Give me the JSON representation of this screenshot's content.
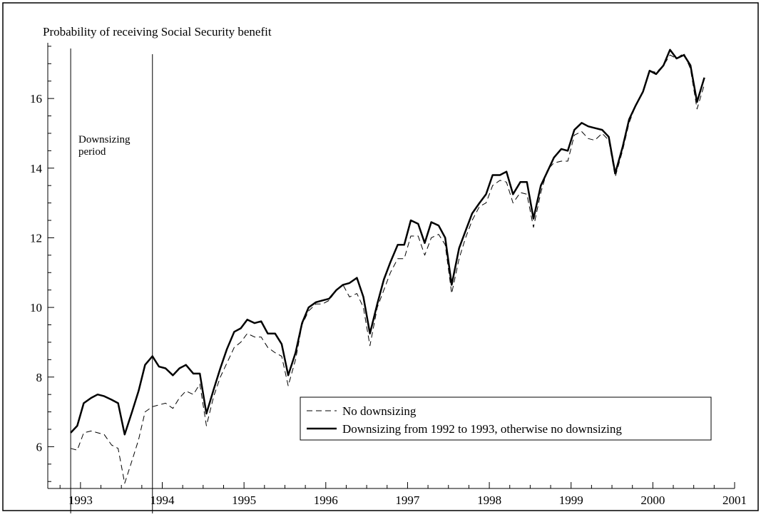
{
  "chart_data": {
    "type": "line",
    "title": "",
    "ylabel": "Probability of receiving Social Security benefit",
    "xlabel": "",
    "xlim": [
      1992.6,
      2001.0
    ],
    "ylim": [
      4.8,
      17.6
    ],
    "xticks": [
      1993,
      1994,
      1995,
      1996,
      1997,
      1998,
      1999,
      2000,
      2001
    ],
    "yticks": [
      6,
      8,
      10,
      12,
      14,
      16
    ],
    "grid": false,
    "legend_position": "bottom-right",
    "annotation": {
      "lines": [
        "Downsizing",
        "period"
      ],
      "x_start": 1992.88,
      "x_end": 1993.88
    },
    "series": [
      {
        "name": "No downsizing",
        "style": "dashed",
        "color": "#000000",
        "x": [
          1992.88,
          1992.96,
          1993.04,
          1993.13,
          1993.21,
          1993.29,
          1993.38,
          1993.46,
          1993.54,
          1993.63,
          1993.71,
          1993.79,
          1993.88,
          1993.96,
          1994.04,
          1994.13,
          1994.21,
          1994.29,
          1994.38,
          1994.46,
          1994.54,
          1994.63,
          1994.71,
          1994.79,
          1994.88,
          1994.96,
          1995.04,
          1995.13,
          1995.21,
          1995.29,
          1995.38,
          1995.46,
          1995.54,
          1995.63,
          1995.71,
          1995.79,
          1995.88,
          1995.96,
          1996.04,
          1996.13,
          1996.21,
          1996.29,
          1996.38,
          1996.46,
          1996.54,
          1996.63,
          1996.71,
          1996.79,
          1996.88,
          1996.96,
          1997.04,
          1997.13,
          1997.21,
          1997.29,
          1997.38,
          1997.46,
          1997.54,
          1997.63,
          1997.71,
          1997.79,
          1997.88,
          1997.96,
          1998.04,
          1998.13,
          1998.21,
          1998.29,
          1998.38,
          1998.46,
          1998.54,
          1998.63,
          1998.71,
          1998.79,
          1998.88,
          1998.96,
          1999.04,
          1999.13,
          1999.21,
          1999.29,
          1999.38,
          1999.46,
          1999.54,
          1999.63,
          1999.71,
          1999.79,
          1999.88,
          1999.96,
          2000.04,
          2000.13,
          2000.21,
          2000.29,
          2000.38,
          2000.46,
          2000.54,
          2000.63
        ],
        "values": [
          5.95,
          5.9,
          6.4,
          6.45,
          6.4,
          6.35,
          6.05,
          5.95,
          4.95,
          5.6,
          6.2,
          7.0,
          7.15,
          7.2,
          7.25,
          7.1,
          7.4,
          7.6,
          7.5,
          7.8,
          6.6,
          7.45,
          8.0,
          8.4,
          8.85,
          9.0,
          9.25,
          9.15,
          9.15,
          8.85,
          8.7,
          8.6,
          7.75,
          8.5,
          9.5,
          9.9,
          10.1,
          10.1,
          10.2,
          10.5,
          10.65,
          10.3,
          10.4,
          10.0,
          8.9,
          10.0,
          10.5,
          11.0,
          11.4,
          11.4,
          12.05,
          12.05,
          11.5,
          12.0,
          12.1,
          11.8,
          10.4,
          11.4,
          12.0,
          12.5,
          12.9,
          13.0,
          13.5,
          13.65,
          13.6,
          13.0,
          13.3,
          13.25,
          12.3,
          13.3,
          13.95,
          14.15,
          14.2,
          14.2,
          14.95,
          15.05,
          14.85,
          14.8,
          15.0,
          14.8,
          13.75,
          14.5,
          15.3,
          15.8,
          16.2,
          16.8,
          16.75,
          16.95,
          17.25,
          17.15,
          17.3,
          16.85,
          15.7,
          16.4
        ]
      },
      {
        "name": "Downsizing from 1992 to 1993, otherwise no downsizing",
        "style": "solid",
        "color": "#000000",
        "x": [
          1992.88,
          1992.96,
          1993.04,
          1993.13,
          1993.21,
          1993.29,
          1993.38,
          1993.46,
          1993.54,
          1993.63,
          1993.71,
          1993.79,
          1993.88,
          1993.96,
          1994.04,
          1994.13,
          1994.21,
          1994.29,
          1994.38,
          1994.46,
          1994.54,
          1994.63,
          1994.71,
          1994.79,
          1994.88,
          1994.96,
          1995.04,
          1995.13,
          1995.21,
          1995.29,
          1995.38,
          1995.46,
          1995.54,
          1995.63,
          1995.71,
          1995.79,
          1995.88,
          1995.96,
          1996.04,
          1996.13,
          1996.21,
          1996.29,
          1996.38,
          1996.46,
          1996.54,
          1996.63,
          1996.71,
          1996.79,
          1996.88,
          1996.96,
          1997.04,
          1997.13,
          1997.21,
          1997.29,
          1997.38,
          1997.46,
          1997.54,
          1997.63,
          1997.71,
          1997.79,
          1997.88,
          1997.96,
          1998.04,
          1998.13,
          1998.21,
          1998.29,
          1998.38,
          1998.46,
          1998.54,
          1998.63,
          1998.71,
          1998.79,
          1998.88,
          1998.96,
          1999.04,
          1999.13,
          1999.21,
          1999.29,
          1999.38,
          1999.46,
          1999.54,
          1999.63,
          1999.71,
          1999.79,
          1999.88,
          1999.96,
          2000.04,
          2000.13,
          2000.21,
          2000.29,
          2000.38,
          2000.46,
          2000.54,
          2000.63
        ],
        "values": [
          6.4,
          6.6,
          7.25,
          7.4,
          7.5,
          7.45,
          7.35,
          7.25,
          6.35,
          7.0,
          7.6,
          8.35,
          8.6,
          8.3,
          8.25,
          8.05,
          8.25,
          8.35,
          8.1,
          8.1,
          6.95,
          7.65,
          8.25,
          8.8,
          9.3,
          9.4,
          9.65,
          9.55,
          9.6,
          9.25,
          9.25,
          8.95,
          8.05,
          8.7,
          9.55,
          10.0,
          10.15,
          10.2,
          10.25,
          10.5,
          10.65,
          10.7,
          10.85,
          10.3,
          9.25,
          10.1,
          10.8,
          11.3,
          11.8,
          11.8,
          12.5,
          12.4,
          11.85,
          12.45,
          12.35,
          12.0,
          10.65,
          11.7,
          12.2,
          12.7,
          13.0,
          13.25,
          13.8,
          13.8,
          13.9,
          13.25,
          13.6,
          13.6,
          12.55,
          13.5,
          13.9,
          14.3,
          14.55,
          14.5,
          15.1,
          15.3,
          15.2,
          15.15,
          15.1,
          14.9,
          13.85,
          14.6,
          15.4,
          15.8,
          16.2,
          16.8,
          16.7,
          16.95,
          17.4,
          17.15,
          17.25,
          16.95,
          15.9,
          16.6
        ]
      }
    ]
  }
}
